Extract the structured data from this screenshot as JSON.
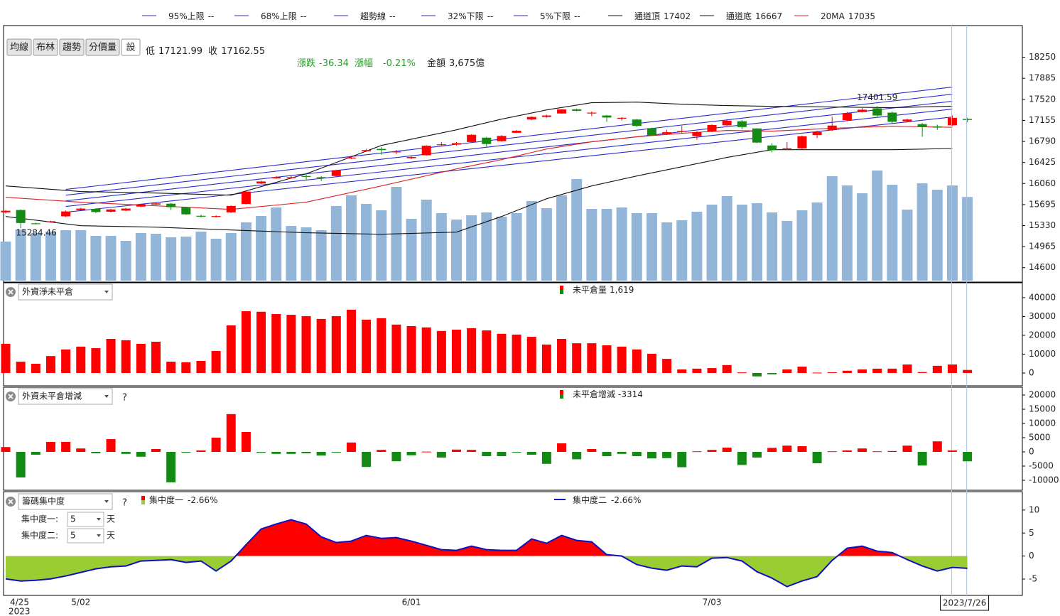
{
  "toolbar": {
    "buttons": [
      "均線",
      "布林",
      "趨勢",
      "分價量",
      "設"
    ]
  },
  "chart_data": [
    {
      "type": "candlestick",
      "info": {
        "low_label": "低",
        "close_label": "收",
        "change_label": "漲跌",
        "change": -36.34,
        "pct_label": "漲幅",
        "pct": "-0.21%",
        "amount_label": "金額",
        "amount": "3,675億"
      },
      "categories": [
        "4/25",
        null,
        null,
        null,
        null,
        "5/02",
        null,
        null,
        null,
        null,
        null,
        null,
        null,
        null,
        null,
        null,
        null,
        null,
        null,
        null,
        null,
        null,
        null,
        null,
        null,
        null,
        null,
        "6/01",
        null,
        null,
        null,
        null,
        null,
        null,
        null,
        null,
        null,
        null,
        null,
        null,
        null,
        null,
        null,
        null,
        null,
        null,
        null,
        "7/03",
        null,
        null,
        null,
        null,
        null,
        null,
        null,
        null,
        null,
        null,
        null,
        null,
        null,
        null,
        null,
        null,
        "2023/7/26"
      ],
      "year": "2023",
      "open": [
        15560,
        15600,
        15370,
        15390,
        15490,
        15600,
        15620,
        15570,
        15590,
        15660,
        15695,
        15710,
        15650,
        15500,
        15490,
        15560,
        15705,
        16060,
        16150,
        16160,
        16190,
        16170,
        16190,
        16495,
        16620,
        16660,
        16600,
        16500,
        16550,
        16730,
        16735,
        16780,
        16855,
        16795,
        16940,
        17170,
        17215,
        17275,
        17345,
        17285,
        17240,
        17195,
        17170,
        17020,
        16920,
        16960,
        16880,
        16960,
        17070,
        17140,
        17015,
        16720,
        16660,
        16670,
        16900,
        16990,
        17160,
        17300,
        17365,
        17290,
        17140,
        17090,
        17050,
        17070,
        17180
      ],
      "high": [
        15600,
        15610,
        15380,
        15415,
        15590,
        15640,
        15630,
        15620,
        15635,
        15710,
        15730,
        15720,
        15660,
        15520,
        15510,
        15680,
        15935,
        16110,
        16190,
        16200,
        16240,
        16190,
        16300,
        16540,
        16660,
        16690,
        16640,
        16545,
        16725,
        16780,
        16780,
        16915,
        16870,
        16900,
        16990,
        17225,
        17255,
        17350,
        17360,
        17310,
        17250,
        17210,
        17180,
        17030,
        16990,
        17060,
        16970,
        17085,
        17165,
        17160,
        17020,
        16760,
        16780,
        16890,
        16975,
        17220,
        17300,
        17370,
        17401.59,
        17310,
        17185,
        17110,
        17080,
        17240,
        17200
      ],
      "low": [
        15540,
        15284.46,
        15350,
        15380,
        15480,
        15590,
        15545,
        15560,
        15580,
        15650,
        15690,
        15600,
        15515,
        15470,
        15470,
        15550,
        15700,
        16050,
        16140,
        16140,
        16120,
        16100,
        16180,
        16480,
        16610,
        16560,
        16570,
        16480,
        16545,
        16710,
        16720,
        16770,
        16700,
        16785,
        16935,
        17160,
        17200,
        17270,
        17315,
        17230,
        17130,
        17150,
        17040,
        16885,
        16900,
        16930,
        16820,
        16950,
        17060,
        17000,
        16760,
        16600,
        16640,
        16660,
        16850,
        16970,
        17140,
        17290,
        17200,
        17100,
        17120,
        16870,
        16990,
        17060,
        17121.99
      ],
      "close": [
        15587,
        15375,
        15365,
        15405,
        15575,
        15625,
        15565,
        15610,
        15625,
        15700,
        15715,
        15650,
        15525,
        15495,
        15495,
        15670,
        15920,
        16095,
        16170,
        16170,
        16185,
        16160,
        16290,
        16510,
        16640,
        16640,
        16615,
        16520,
        16715,
        16740,
        16760,
        16905,
        16745,
        16885,
        16975,
        17215,
        17240,
        17345,
        17320,
        17290,
        17205,
        17200,
        17060,
        16895,
        16950,
        16970,
        16950,
        17075,
        17150,
        17040,
        16770,
        16640,
        16670,
        16880,
        16955,
        17065,
        17280,
        17340,
        17240,
        17130,
        17170,
        17040,
        17030,
        17198.89,
        17162.55
      ],
      "up_color": "#ff0000",
      "down_color": "#138a13",
      "high_note_color": "#cc44cc",
      "low_note_color": "#2e7d32",
      "volume": {
        "color": "#93b6d8",
        "vlim": [
          0,
          11200
        ],
        "values": [
          1716,
          2246,
          2090,
          2153,
          2215,
          2215,
          1966,
          1966,
          1747,
          2090,
          2059,
          1903,
          1934,
          2153,
          1841,
          2090,
          2558,
          2839,
          3214,
          2402,
          2340,
          2215,
          3276,
          3744,
          3370,
          3089,
          4118,
          2714,
          3557,
          2964,
          2683,
          2870,
          2995,
          2808,
          2964,
          3494,
          3182,
          3744,
          4462,
          3151,
          3151,
          3214,
          2964,
          2964,
          2558,
          2652,
          3026,
          3338,
          3713,
          3338,
          3401,
          2995,
          2621,
          3089,
          3432,
          4586,
          4181,
          3838,
          4836,
          4212,
          3120,
          4274,
          3994,
          4181,
          3675
        ]
      },
      "lines": [
        {
          "name": "95%上限",
          "legend_value": "--",
          "color": "#2a2ad0",
          "x": [
            4,
            63
          ],
          "values": [
            15957,
            17732
          ]
        },
        {
          "name": "68%上限",
          "legend_value": "--",
          "color": "#2a2ad0",
          "x": [
            4,
            63
          ],
          "values": [
            15858,
            17609
          ]
        },
        {
          "name": "趨勢線",
          "legend_value": "--",
          "color": "#2a2ad0",
          "x": [
            4,
            63
          ],
          "values": [
            15759,
            17486
          ]
        },
        {
          "name": "32%下限",
          "legend_value": "--",
          "color": "#2a2ad0",
          "x": [
            4,
            63
          ],
          "values": [
            15661,
            17350
          ]
        },
        {
          "name": "5%下限",
          "legend_value": "--",
          "color": "#2a2ad0",
          "x": [
            4,
            63
          ],
          "values": [
            15562,
            17214
          ]
        },
        {
          "name": "通道頂",
          "color": "#111111",
          "x": [
            0,
            5,
            10,
            15,
            20,
            25,
            30,
            33,
            36,
            39,
            42,
            45,
            48,
            51,
            55,
            59,
            63
          ],
          "values": [
            16018,
            15920,
            15895,
            15858,
            16228,
            16721,
            16992,
            17177,
            17337,
            17461,
            17473,
            17436,
            17412,
            17399,
            17387,
            17375,
            17402
          ]
        },
        {
          "name": "通道底",
          "color": "#111111",
          "x": [
            0,
            5,
            10,
            15,
            20,
            25,
            30,
            33,
            36,
            39,
            42,
            45,
            48,
            51,
            55,
            59,
            63
          ],
          "values": [
            15488,
            15328,
            15303,
            15254,
            15205,
            15180,
            15217,
            15488,
            15796,
            16018,
            16191,
            16351,
            16512,
            16647,
            16647,
            16647,
            16667
          ]
        },
        {
          "name": "20MA",
          "color": "#e02020",
          "x": [
            0,
            5,
            10,
            15,
            20,
            25,
            30,
            33,
            36,
            39,
            42,
            45,
            48,
            51,
            55,
            59,
            63
          ],
          "values": [
            15821,
            15735,
            15673,
            15611,
            15735,
            16018,
            16314,
            16474,
            16659,
            16783,
            16869,
            16931,
            16980,
            16968,
            17017,
            17054,
            17035
          ]
        }
      ],
      "ylim": [
        14350,
        18800
      ],
      "yticks": [
        14600,
        14965,
        15330,
        15695,
        16060,
        16425,
        16790,
        17155,
        17520,
        17885,
        18250
      ],
      "grid": false
    },
    {
      "type": "bar",
      "selector": "外資淨未平倉",
      "legend": {
        "name": "未平倉量",
        "value": "1,619"
      },
      "values": [
        15500,
        6000,
        4900,
        9000,
        12500,
        14000,
        13200,
        18100,
        17400,
        15500,
        16600,
        6000,
        5700,
        6400,
        11700,
        25300,
        32800,
        32500,
        31300,
        30900,
        30200,
        28700,
        30200,
        33600,
        28300,
        29100,
        25700,
        24900,
        24200,
        22300,
        23000,
        23800,
        22600,
        20800,
        20400,
        19200,
        15100,
        18100,
        15800,
        15800,
        14700,
        14000,
        12500,
        10200,
        7500,
        1900,
        2300,
        2600,
        4200,
        300,
        -1800,
        -700,
        1900,
        3400,
        200,
        400,
        1200,
        1900,
        2300,
        2300,
        4500,
        500,
        3800,
        4500,
        1619
      ],
      "up_color": "#ff0000",
      "down_color": "#138a13",
      "ylim": [
        -6800,
        47900
      ],
      "yticks": [
        0,
        10000,
        20000,
        30000,
        40000
      ]
    },
    {
      "type": "bar",
      "selector": "外資未平倉增減",
      "help": "?",
      "legend": {
        "name": "未平倉增減"
      },
      "values": [
        1700,
        -9000,
        -1000,
        3500,
        3500,
        1200,
        -500,
        4500,
        -700,
        -1700,
        1000,
        -10700,
        -200,
        500,
        5000,
        13300,
        7000,
        -300,
        -700,
        -700,
        -500,
        -1300,
        -200,
        3300,
        -5300,
        700,
        -3300,
        -1200,
        100,
        -2000,
        800,
        700,
        -1500,
        -1500,
        -100,
        -1000,
        -4200,
        3000,
        -2600,
        1000,
        -1500,
        -700,
        -1500,
        -2300,
        -2200,
        -5400,
        200,
        700,
        1500,
        -4600,
        -2000,
        1400,
        2200,
        2000,
        -4000,
        200,
        500,
        1200,
        200,
        300,
        2200,
        -4800,
        3700,
        500,
        -3314
      ],
      "up_color": "#ff0000",
      "down_color": "#138a13",
      "ylim": [
        -13500,
        22750
      ],
      "yticks": [
        -10000,
        -5000,
        0,
        5000,
        10000,
        15000,
        20000
      ]
    },
    {
      "type": "area",
      "selector": "籌碼集中度",
      "help": "?",
      "series": [
        {
          "name": "集中度一",
          "legend_value": "-2.66%",
          "up_color": "#ff0000",
          "down_color": "#9acd32",
          "values": [
            -4.95,
            -5.41,
            -5.26,
            -4.95,
            -4.33,
            -3.55,
            -2.78,
            -2.32,
            -2.16,
            -1.08,
            -0.93,
            -0.77,
            -1.39,
            -1.08,
            -3.25,
            -1.08,
            2.47,
            5.87,
            6.96,
            7.88,
            6.96,
            4.17,
            2.94,
            3.25,
            4.48,
            3.86,
            4.02,
            3.25,
            2.32,
            1.39,
            1.24,
            2.16,
            1.39,
            1.24,
            1.24,
            3.71,
            2.78,
            4.48,
            3.4,
            3.09,
            0.31,
            0,
            -1.85,
            -2.63,
            -3.09,
            -2.16,
            -2.32,
            -0.46,
            -0.31,
            -1.08,
            -3.4,
            -4.79,
            -6.65,
            -5.41,
            -4.48,
            -0.93,
            1.7,
            2.16,
            1.08,
            0.77,
            -0.77,
            -2.16,
            -3.25,
            -2.47,
            -2.66
          ]
        },
        {
          "name": "集中度二",
          "legend_value": "-2.66%",
          "color": "#1010c0",
          "values": [
            -4.95,
            -5.41,
            -5.26,
            -4.95,
            -4.33,
            -3.55,
            -2.78,
            -2.32,
            -2.16,
            -1.08,
            -0.93,
            -0.77,
            -1.39,
            -1.08,
            -3.25,
            -1.08,
            2.47,
            5.87,
            6.96,
            7.88,
            6.96,
            4.17,
            2.94,
            3.25,
            4.48,
            3.86,
            4.02,
            3.25,
            2.32,
            1.39,
            1.24,
            2.16,
            1.39,
            1.24,
            1.24,
            3.71,
            2.78,
            4.48,
            3.4,
            3.09,
            0.31,
            0,
            -1.85,
            -2.63,
            -3.09,
            -2.16,
            -2.32,
            -0.46,
            -0.31,
            -1.08,
            -3.4,
            -4.79,
            -6.65,
            -5.41,
            -4.48,
            -0.93,
            1.7,
            2.16,
            1.08,
            0.77,
            -0.77,
            -2.16,
            -3.25,
            -2.47,
            -2.66
          ]
        }
      ],
      "settings": [
        {
          "label": "集中度一:",
          "value": 5,
          "unit": "天",
          "color": "#cc0000"
        },
        {
          "label": "集中度二:",
          "value": 5,
          "unit": "天",
          "color": "#101080"
        }
      ],
      "ylim": [
        -8.55,
        14
      ],
      "yticks": [
        -5,
        0,
        5,
        10
      ]
    }
  ]
}
